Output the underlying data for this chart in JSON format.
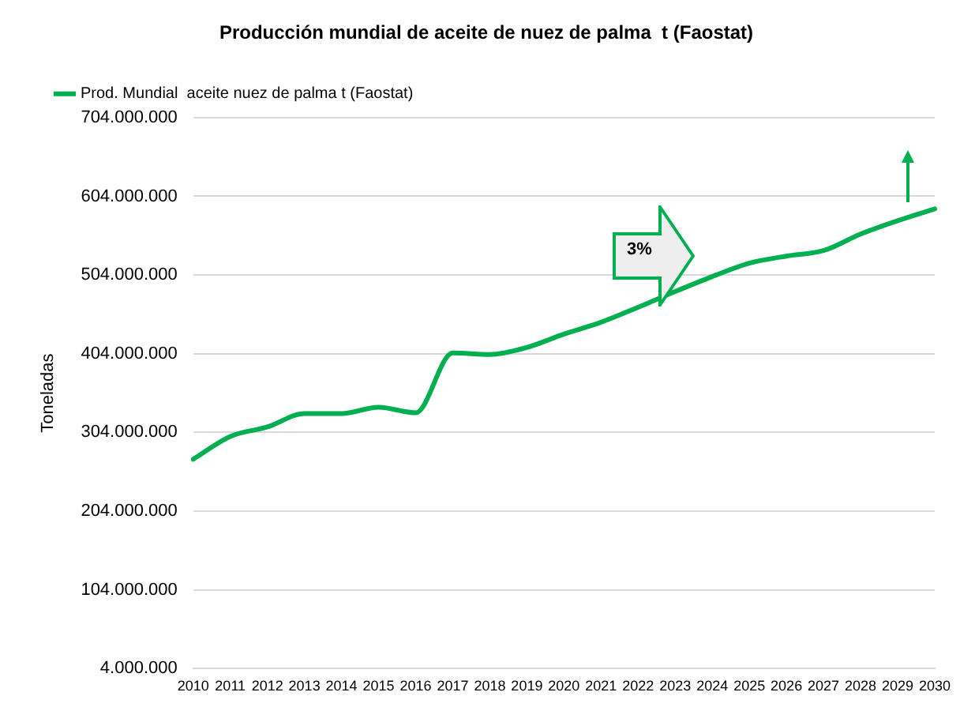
{
  "chart_data": {
    "type": "line",
    "title": "Producción mundial de aceite de nuez de palma  t (Faostat)",
    "ylabel": "Toneladas",
    "categories": [
      "2010",
      "2011",
      "2012",
      "2013",
      "2014",
      "2015",
      "2016",
      "2017",
      "2018",
      "2019",
      "2020",
      "2021",
      "2022",
      "2023",
      "2024",
      "2025",
      "2026",
      "2027",
      "2028",
      "2029",
      "2030"
    ],
    "series": [
      {
        "name": "Prod. Mundial  aceite nuez de palma t (Faostat)",
        "color": "#00b050",
        "values": [
          270000000,
          299000000,
          311000000,
          328000000,
          328000000,
          336000000,
          329000000,
          405000000,
          403000000,
          412000000,
          429000000,
          444000000,
          463000000,
          483000000,
          502000000,
          519000000,
          528000000,
          535000000,
          556000000,
          573000000,
          588000000
        ]
      }
    ],
    "ylim": [
      4000000,
      704000000
    ],
    "yticks": [
      {
        "value": 4000000,
        "label": "4.000.000"
      },
      {
        "value": 104000000,
        "label": "104.000.000"
      },
      {
        "value": 204000000,
        "label": "204.000.000"
      },
      {
        "value": 304000000,
        "label": "304.000.000"
      },
      {
        "value": 404000000,
        "label": "404.000.000"
      },
      {
        "value": 504000000,
        "label": "504.000.000"
      },
      {
        "value": 604000000,
        "label": "604.000.000"
      },
      {
        "value": 704000000,
        "label": "704.000.000"
      }
    ],
    "grid": "y",
    "legend": "top left",
    "marker": "none",
    "line_style": "solid",
    "annotations": [
      "3%"
    ]
  }
}
